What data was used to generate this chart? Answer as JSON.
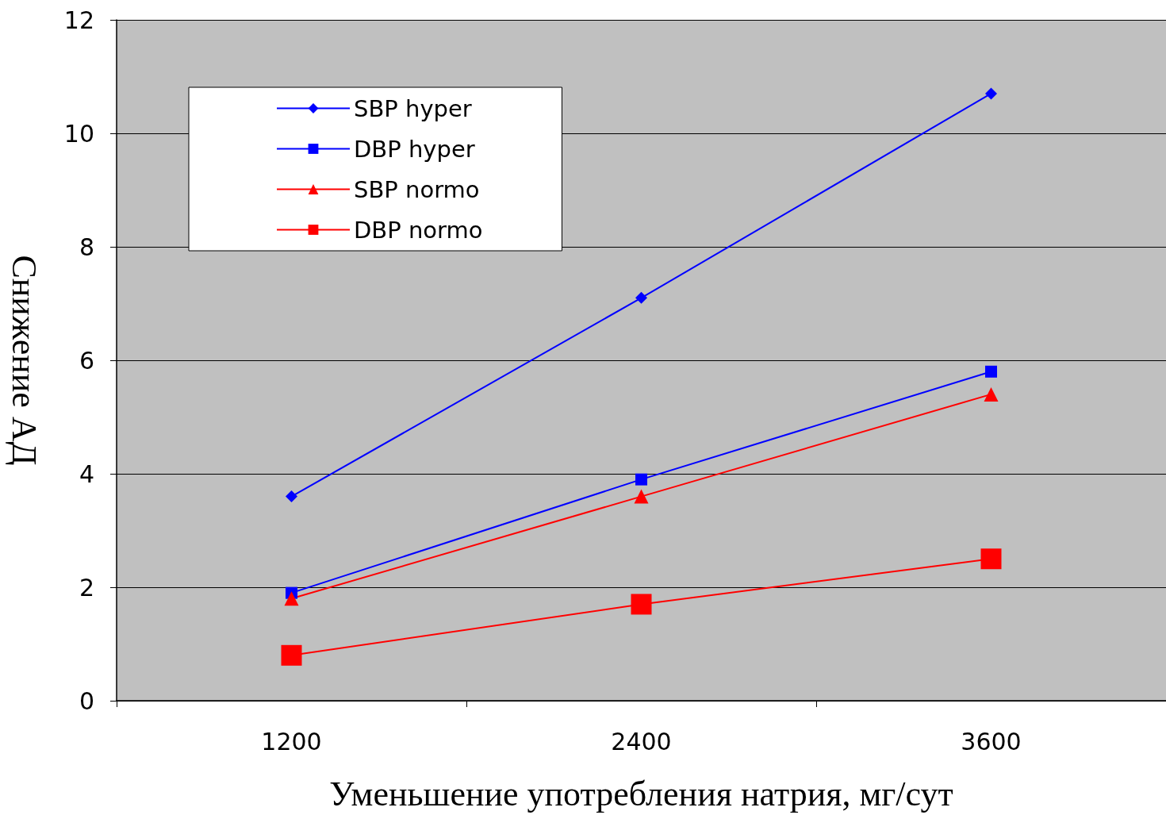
{
  "chart_data": {
    "type": "line",
    "xlabel": "Уменьшение употребления натрия, мг/сут",
    "ylabel": "Снижение АД",
    "categories": [
      "1200",
      "2400",
      "3600"
    ],
    "series": [
      {
        "name": "SBP hyper",
        "color": "#0000ff",
        "marker": "diamond",
        "values": [
          3.6,
          7.1,
          10.7
        ]
      },
      {
        "name": "DBP hyper",
        "color": "#0000ff",
        "marker": "square",
        "values": [
          1.9,
          3.9,
          5.8
        ]
      },
      {
        "name": "SBP normo",
        "color": "#ff0000",
        "marker": "triangle",
        "values": [
          1.8,
          3.6,
          5.4
        ]
      },
      {
        "name": "DBP normo",
        "color": "#ff0000",
        "marker": "square",
        "values": [
          0.8,
          1.7,
          2.5
        ]
      }
    ],
    "ylim": [
      0,
      12
    ],
    "yticks": [
      0,
      2,
      4,
      6,
      8,
      10,
      12
    ],
    "grid": "y",
    "legend": "top left",
    "line_style": "solid"
  }
}
